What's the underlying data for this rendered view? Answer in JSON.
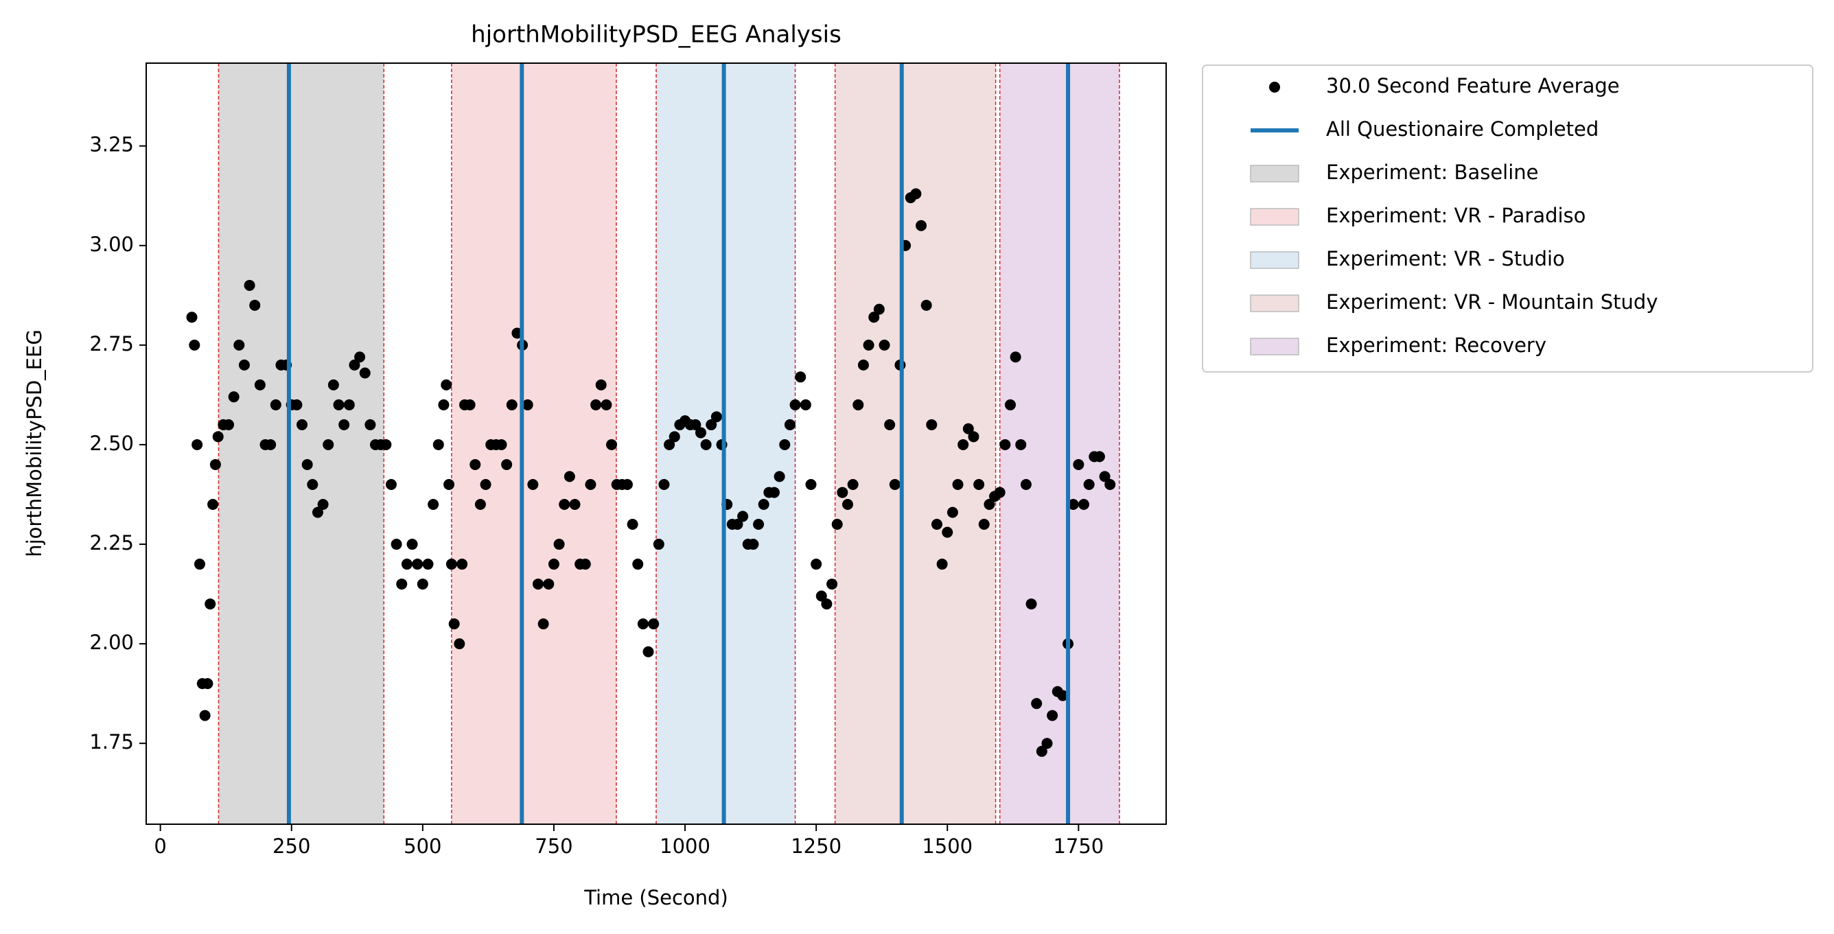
{
  "chart_data": {
    "type": "scatter",
    "title": "hjorthMobilityPSD_EEG Analysis",
    "x_label": "Time (Second)",
    "y_label": "hjorthMobilityPSD_EEG",
    "xlim": [
      -27,
      1917
    ],
    "ylim": [
      1.547,
      3.458
    ],
    "xticks": [
      0,
      250,
      500,
      750,
      1000,
      1250,
      1500,
      1750
    ],
    "yticks": [
      1.75,
      {
        "value": 2.0,
        "label": "2.00"
      },
      2.25,
      {
        "value": 2.5,
        "label": "2.50"
      },
      2.75,
      {
        "value": 3.0,
        "label": "3.00"
      },
      3.25
    ],
    "series": [
      {
        "name": "30.0 Second Feature Average",
        "color": "#000000",
        "x": [
          60,
          65,
          70,
          75,
          80,
          85,
          90,
          95,
          100,
          105,
          110,
          120,
          130,
          140,
          150,
          160,
          170,
          180,
          190,
          200,
          210,
          220,
          230,
          240,
          250,
          260,
          270,
          280,
          290,
          300,
          310,
          320,
          330,
          340,
          350,
          360,
          370,
          380,
          390,
          400,
          410,
          420,
          430,
          440,
          450,
          460,
          470,
          480,
          490,
          500,
          510,
          520,
          530,
          540,
          545,
          550,
          555,
          560,
          570,
          575,
          580,
          590,
          600,
          610,
          620,
          630,
          640,
          650,
          660,
          670,
          680,
          690,
          700,
          710,
          720,
          730,
          740,
          750,
          760,
          770,
          780,
          790,
          800,
          810,
          820,
          830,
          840,
          850,
          860,
          870,
          880,
          890,
          900,
          910,
          920,
          930,
          940,
          950,
          960,
          970,
          980,
          990,
          1000,
          1010,
          1020,
          1030,
          1040,
          1050,
          1060,
          1070,
          1080,
          1090,
          1100,
          1110,
          1120,
          1130,
          1140,
          1150,
          1160,
          1170,
          1180,
          1190,
          1200,
          1210,
          1220,
          1230,
          1240,
          1250,
          1260,
          1270,
          1280,
          1290,
          1300,
          1310,
          1320,
          1330,
          1340,
          1350,
          1360,
          1370,
          1380,
          1390,
          1400,
          1410,
          1420,
          1430,
          1440,
          1450,
          1460,
          1470,
          1480,
          1490,
          1500,
          1510,
          1520,
          1530,
          1540,
          1550,
          1560,
          1570,
          1580,
          1590,
          1600,
          1610,
          1620,
          1630,
          1640,
          1650,
          1660,
          1670,
          1680,
          1690,
          1700,
          1710,
          1720,
          1730,
          1740,
          1750,
          1760,
          1770,
          1780,
          1790,
          1800,
          1810
        ],
        "values": [
          2.82,
          2.75,
          2.5,
          2.2,
          1.9,
          1.82,
          1.9,
          2.1,
          2.35,
          2.45,
          2.52,
          2.55,
          2.55,
          2.62,
          2.75,
          2.7,
          2.9,
          2.85,
          2.65,
          2.5,
          2.5,
          2.6,
          2.7,
          2.7,
          2.6,
          2.6,
          2.55,
          2.45,
          2.4,
          2.33,
          2.35,
          2.5,
          2.65,
          2.6,
          2.55,
          2.6,
          2.7,
          2.72,
          2.68,
          2.55,
          2.5,
          2.5,
          2.5,
          2.4,
          2.25,
          2.15,
          2.2,
          2.25,
          2.2,
          2.15,
          2.2,
          2.35,
          2.5,
          2.6,
          2.65,
          2.4,
          2.2,
          2.05,
          2.0,
          2.2,
          2.6,
          2.6,
          2.45,
          2.35,
          2.4,
          2.5,
          2.5,
          2.5,
          2.45,
          2.6,
          2.78,
          2.75,
          2.6,
          2.4,
          2.15,
          2.05,
          2.15,
          2.2,
          2.25,
          2.35,
          2.42,
          2.35,
          2.2,
          2.2,
          2.4,
          2.6,
          2.65,
          2.6,
          2.5,
          2.4,
          2.4,
          2.4,
          2.3,
          2.2,
          2.05,
          1.98,
          2.05,
          2.25,
          2.4,
          2.5,
          2.52,
          2.55,
          2.56,
          2.55,
          2.55,
          2.53,
          2.5,
          2.55,
          2.57,
          2.5,
          2.35,
          2.3,
          2.3,
          2.32,
          2.25,
          2.25,
          2.3,
          2.35,
          2.38,
          2.38,
          2.42,
          2.5,
          2.55,
          2.6,
          2.67,
          2.6,
          2.4,
          2.2,
          2.12,
          2.1,
          2.15,
          2.3,
          2.38,
          2.35,
          2.4,
          2.6,
          2.7,
          2.75,
          2.82,
          2.84,
          2.75,
          2.55,
          2.4,
          2.7,
          3.0,
          3.12,
          3.13,
          3.05,
          2.85,
          2.55,
          2.3,
          2.2,
          2.28,
          2.33,
          2.4,
          2.5,
          2.54,
          2.52,
          2.4,
          2.3,
          2.35,
          2.37,
          2.38,
          2.5,
          2.6,
          2.72,
          2.5,
          2.4,
          2.1,
          1.85,
          1.73,
          1.75,
          1.82,
          1.88,
          1.87,
          2.0,
          2.35,
          2.45,
          2.35,
          2.4,
          2.47,
          2.47,
          2.42,
          2.4
        ]
      }
    ],
    "vlines": {
      "name": "All Questionaire Completed",
      "color": "#1f77b4",
      "x": [
        245,
        689,
        1074,
        1413,
        1730
      ]
    },
    "spans": [
      {
        "name": "Experiment: Baseline",
        "color": "#d9d9d9",
        "start": 111,
        "end": 426
      },
      {
        "name": "Experiment: VR - Paradiso",
        "color": "#f8dcdd",
        "start": 555,
        "end": 869
      },
      {
        "name": "Experiment: VR - Studio",
        "color": "#dde9f3",
        "start": 945,
        "end": 1210
      },
      {
        "name": "Experiment: VR - Mountain Study",
        "color": "#f1dfdf",
        "start": 1286,
        "end": 1592
      },
      {
        "name": "Experiment: Recovery",
        "color": "#ead8ec",
        "start": 1600,
        "end": 1828
      }
    ],
    "legend": "outside-upper-right"
  }
}
